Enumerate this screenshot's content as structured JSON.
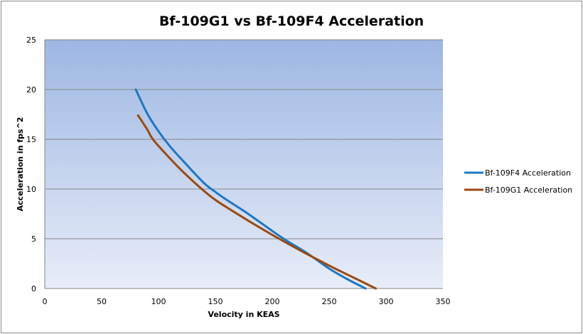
{
  "chart_data": {
    "type": "line",
    "title": "Bf-109G1 vs Bf-109F4 Acceleration",
    "xlabel": "Velocity in KEAS",
    "ylabel": "Acceleration in fps^2",
    "xlim": [
      0,
      350
    ],
    "ylim": [
      0,
      25
    ],
    "xticks": [
      0,
      50,
      100,
      150,
      200,
      250,
      300,
      350
    ],
    "yticks": [
      0,
      5,
      10,
      15,
      20,
      25
    ],
    "grid": "horizontal",
    "legend_position": "right",
    "series": [
      {
        "name": "Bf-109F4 Acceleration",
        "color": "#1f77c0",
        "points": [
          [
            80,
            20.0
          ],
          [
            90,
            17.6
          ],
          [
            100,
            15.8
          ],
          [
            110,
            14.3
          ],
          [
            125,
            12.4
          ],
          [
            140,
            10.6
          ],
          [
            150,
            9.7
          ],
          [
            160,
            8.9
          ],
          [
            175,
            7.8
          ],
          [
            190,
            6.6
          ],
          [
            210,
            5.0
          ],
          [
            230,
            3.6
          ],
          [
            250,
            2.0
          ],
          [
            265,
            1.0
          ],
          [
            282,
            0
          ]
        ]
      },
      {
        "name": "Bf-109G1 Acceleration",
        "color": "#9a4a12",
        "points": [
          [
            82,
            17.4
          ],
          [
            90,
            16.0
          ],
          [
            95,
            15.0
          ],
          [
            105,
            13.7
          ],
          [
            120,
            11.9
          ],
          [
            138,
            10.0
          ],
          [
            150,
            8.9
          ],
          [
            165,
            7.8
          ],
          [
            185,
            6.4
          ],
          [
            206,
            5.0
          ],
          [
            225,
            3.8
          ],
          [
            245,
            2.6
          ],
          [
            257,
            1.9
          ],
          [
            275,
            0.9
          ],
          [
            291,
            0
          ]
        ]
      }
    ]
  }
}
